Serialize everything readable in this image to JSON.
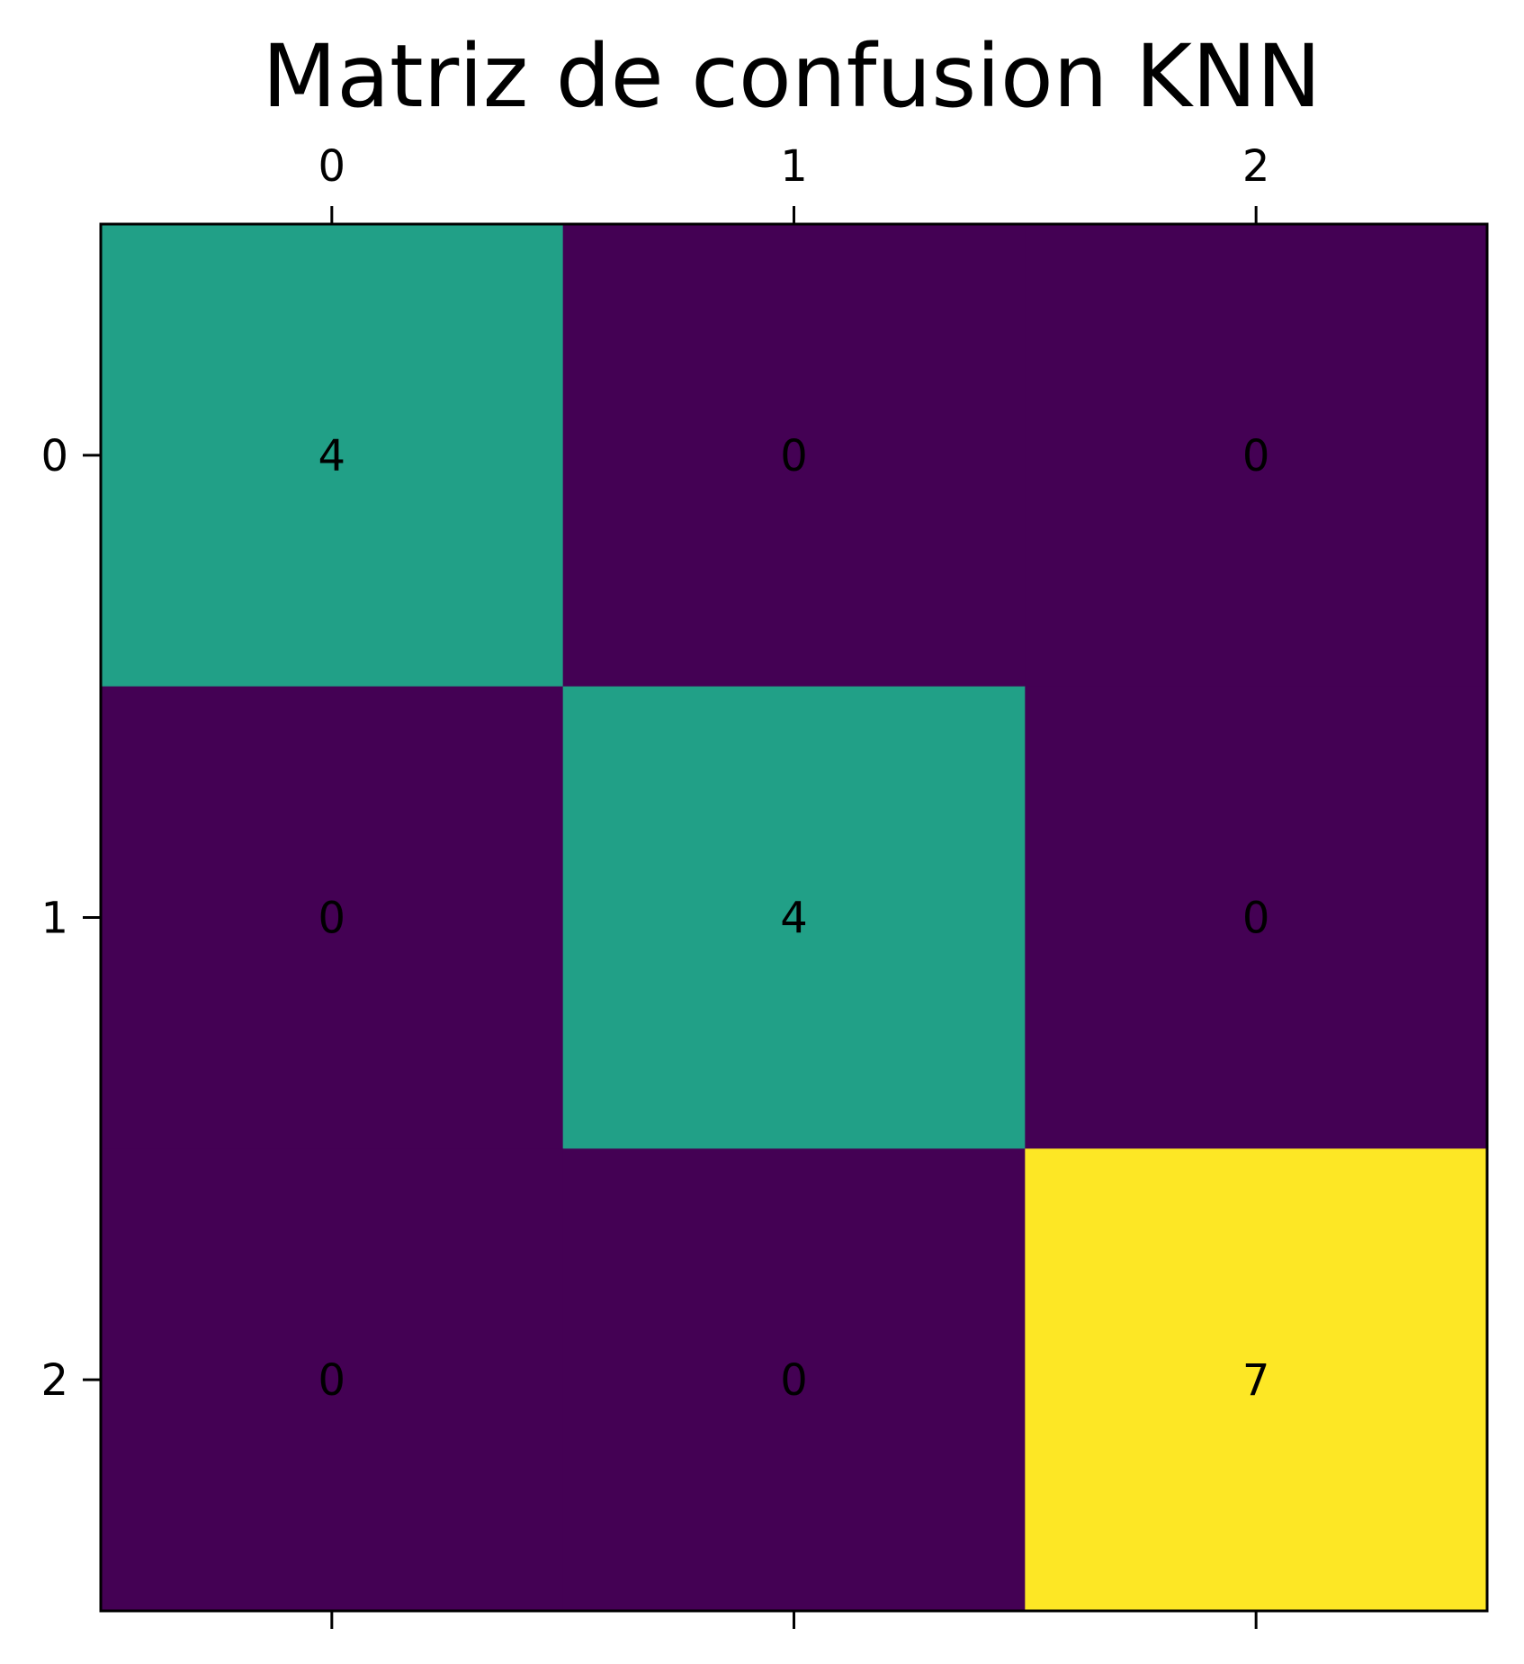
{
  "chart_data": {
    "type": "heatmap",
    "title": "Matriz de confusion KNN",
    "xlabel": "",
    "ylabel": "",
    "x_categories": [
      "0",
      "1",
      "2"
    ],
    "y_categories": [
      "0",
      "1",
      "2"
    ],
    "values": [
      [
        4,
        0,
        0
      ],
      [
        0,
        4,
        0
      ],
      [
        0,
        0,
        7
      ]
    ],
    "colormap": "viridis",
    "value_range": [
      0,
      7
    ],
    "colors": {
      "low": "#440154",
      "mid": "#21a087",
      "high": "#fde725"
    },
    "x_ticks_position": "top",
    "grid": false
  }
}
